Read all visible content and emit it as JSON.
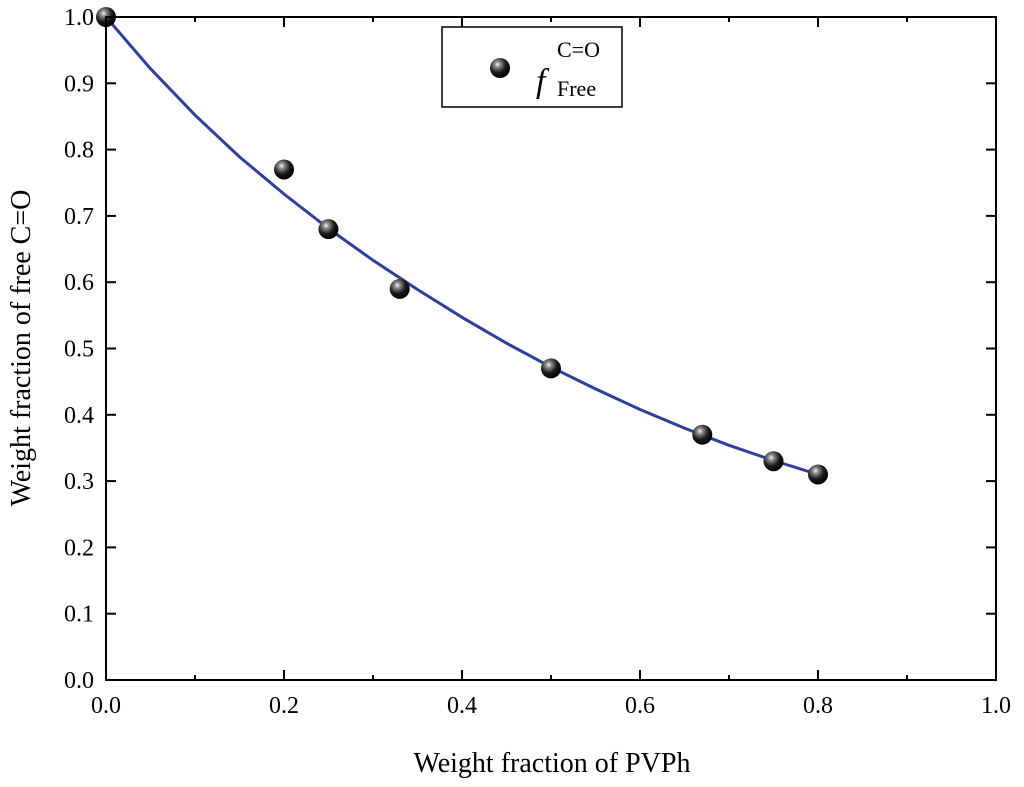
{
  "chart_data": {
    "type": "scatter",
    "title": "",
    "xlabel": "Weight fraction of PVPh",
    "ylabel": "Weight fraction of free C=O",
    "xlim": [
      0.0,
      1.0
    ],
    "ylim": [
      0.0,
      1.0
    ],
    "x_ticks": [
      "0.0",
      "0.2",
      "0.4",
      "0.6",
      "0.8",
      "1.0"
    ],
    "y_ticks": [
      "0.0",
      "0.1",
      "0.2",
      "0.3",
      "0.4",
      "0.5",
      "0.6",
      "0.7",
      "0.8",
      "0.9",
      "1.0"
    ],
    "grid": false,
    "legend_position": "top-center",
    "series": [
      {
        "name": "f Free C=O",
        "kind": "scatter",
        "color": "#000000",
        "legend": {
          "symbol": "f",
          "superscript": "C=O",
          "subscript": "Free"
        },
        "x": [
          0.0,
          0.2,
          0.25,
          0.33,
          0.5,
          0.67,
          0.75,
          0.8
        ],
        "y": [
          1.0,
          0.77,
          0.68,
          0.59,
          0.47,
          0.37,
          0.33,
          0.31
        ]
      },
      {
        "name": "fit",
        "kind": "line",
        "color": "#2e3f9e",
        "x": [
          0.0,
          0.05,
          0.1,
          0.15,
          0.2,
          0.25,
          0.3,
          0.35,
          0.4,
          0.45,
          0.5,
          0.55,
          0.6,
          0.65,
          0.7,
          0.75,
          0.8
        ],
        "y": [
          1.0,
          0.922,
          0.852,
          0.789,
          0.733,
          0.681,
          0.633,
          0.589,
          0.547,
          0.508,
          0.472,
          0.439,
          0.408,
          0.38,
          0.354,
          0.331,
          0.31
        ]
      }
    ]
  }
}
